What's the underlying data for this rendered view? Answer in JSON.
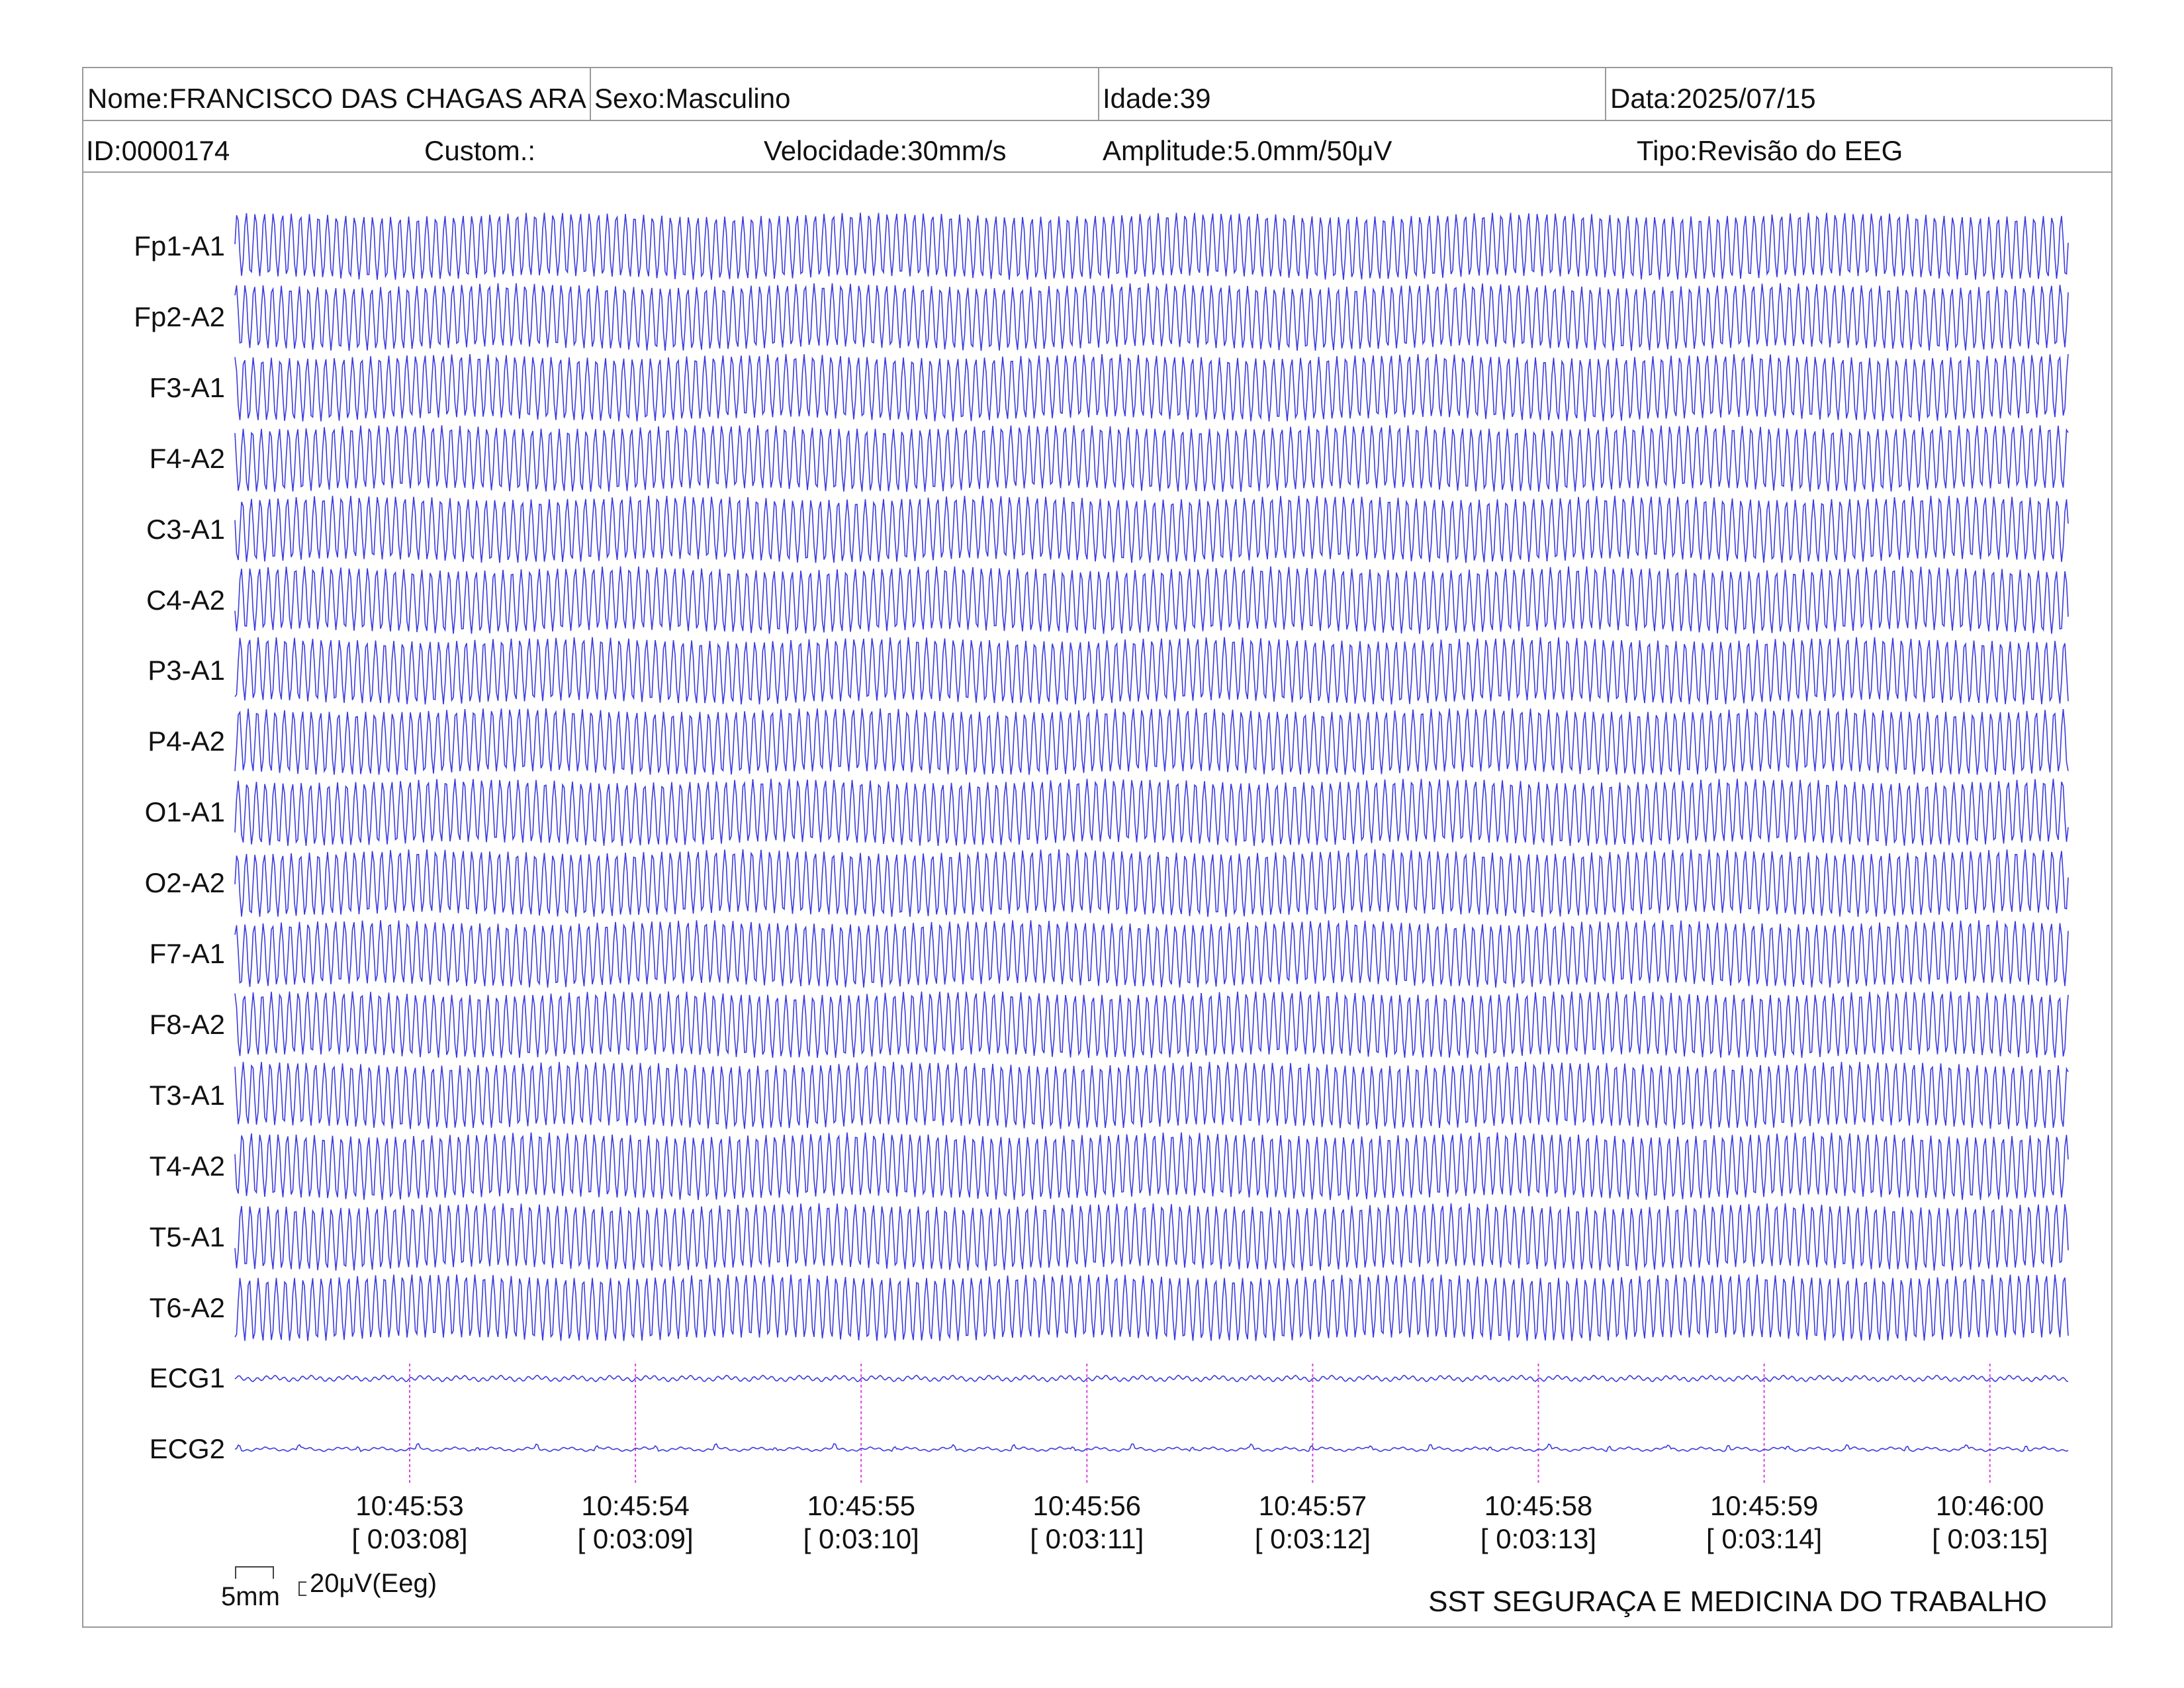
{
  "header": {
    "name": "Nome:FRANCISCO DAS CHAGAS ARA",
    "sex": "Sexo:Masculino",
    "age": "Idade:39",
    "date": "Data:2025/07/15",
    "id": "ID:0000174",
    "custom": "Custom.:",
    "speed": "Velocidade:30mm/s",
    "amplitude": "Amplitude:5.0mm/50μV",
    "type": "Tipo:Revisão do EEG"
  },
  "scale_bar": {
    "length": "5mm",
    "voltage": "20μV(Eeg)"
  },
  "footer": {
    "organization": "SST SEGURAÇA E MEDICINA DO TRABALHO"
  },
  "colors": {
    "trace": "#3b3bdc",
    "time_marker": "#e040e0",
    "border": "#9a9a9a"
  },
  "chart_data": {
    "type": "line",
    "channels": [
      "Fp1-A1",
      "Fp2-A2",
      "F3-A1",
      "F4-A2",
      "C3-A1",
      "C4-A2",
      "P3-A1",
      "P4-A2",
      "O1-A1",
      "O2-A2",
      "F7-A1",
      "F8-A2",
      "T3-A1",
      "T4-A2",
      "T5-A1",
      "T6-A2",
      "ECG1",
      "ECG2"
    ],
    "time_labels": [
      {
        "clock": "10:45:53",
        "elapsed": "[ 0:03:08]"
      },
      {
        "clock": "10:45:54",
        "elapsed": "[ 0:03:09]"
      },
      {
        "clock": "10:45:55",
        "elapsed": "[ 0:03:10]"
      },
      {
        "clock": "10:45:56",
        "elapsed": "[ 0:03:11]"
      },
      {
        "clock": "10:45:57",
        "elapsed": "[ 0:03:12]"
      },
      {
        "clock": "10:45:58",
        "elapsed": "[ 0:03:13]"
      },
      {
        "clock": "10:45:59",
        "elapsed": "[ 0:03:14]"
      },
      {
        "clock": "10:46:00",
        "elapsed": "[ 0:03:15]"
      }
    ],
    "oscillation_cycles_per_second": 25,
    "eeg_amplitude_relative": 1.0,
    "ecg1_amplitude_relative": 0.06,
    "ecg2_amplitude_relative": 0.03
  }
}
